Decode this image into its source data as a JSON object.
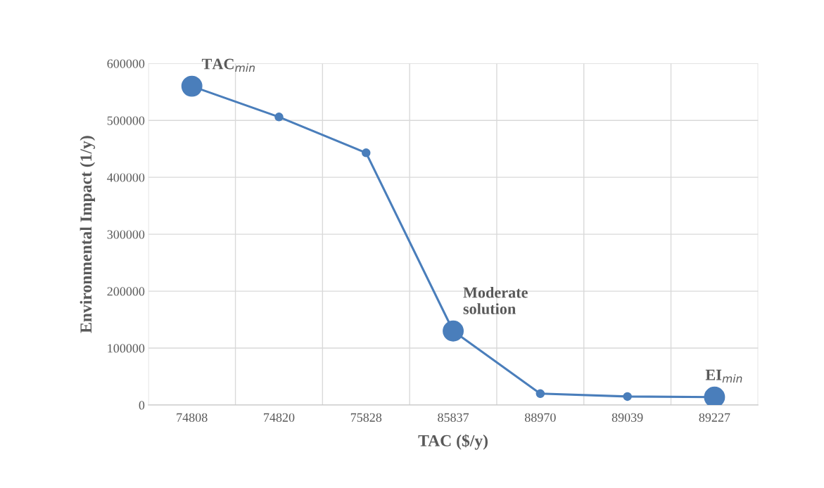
{
  "chart_data": {
    "type": "line",
    "xlabel": "TAC ($/y)",
    "ylabel": "Environmental Impact (1/y)",
    "categories": [
      "74808",
      "74820",
      "75828",
      "85837",
      "88970",
      "89039",
      "89227"
    ],
    "series": [
      {
        "color": "#4a7ebb",
        "values": [
          560000,
          506000,
          443000,
          130000,
          20000,
          15000,
          14000
        ]
      },
      {
        "type": "scatter",
        "color": "#4a7ebb",
        "values": [
          560000,
          null,
          null,
          130000,
          null,
          null,
          14000
        ]
      }
    ],
    "ylim": [
      0,
      600000
    ],
    "yticks": [
      0,
      100000,
      200000,
      300000,
      400000,
      500000,
      600000
    ],
    "grid": true,
    "marker": "circle",
    "line_style": "solid",
    "legend": false,
    "annotations": [
      {
        "text": "TAC$_{min}$",
        "x": "74808",
        "y": 560000
      },
      {
        "text": "Moderate\nsolution",
        "x": "85837",
        "y": 130000
      },
      {
        "text": "EI$_{min}$",
        "x": "89227",
        "y": 14000
      }
    ]
  }
}
